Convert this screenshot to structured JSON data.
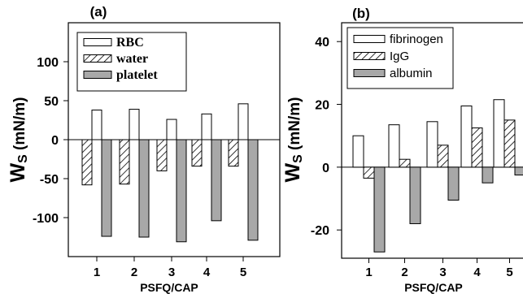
{
  "chart_data": [
    {
      "type": "bar",
      "panel_label": "(a)",
      "categories": [
        "1",
        "2",
        "3",
        "4",
        "5"
      ],
      "xlabel": "PSFQ/CAP",
      "ylabel_main": "W",
      "ylabel_sub": "S",
      "ylabel_unit": " (mN/m)",
      "ylim": [
        -150,
        150
      ],
      "yticks": [
        -100,
        -50,
        0,
        50,
        100
      ],
      "ytick_labels": [
        "-100",
        "-50",
        "0",
        "50",
        "100"
      ],
      "legend_position": "top-left",
      "series": [
        {
          "name": "water",
          "style": "hatch",
          "values": [
            -58,
            -57,
            -40,
            -34,
            -34
          ]
        },
        {
          "name": "RBC",
          "style": "white",
          "values": [
            38,
            39,
            26,
            33,
            46
          ]
        },
        {
          "name": "platelet",
          "style": "gray",
          "values": [
            -124,
            -125,
            -131,
            -104,
            -129
          ]
        }
      ]
    },
    {
      "type": "bar",
      "panel_label": "(b)",
      "categories": [
        "1",
        "2",
        "3",
        "4",
        "5"
      ],
      "xlabel": "PSFQ/CAP",
      "ylabel_main": "W",
      "ylabel_sub": "S",
      "ylabel_unit": " (mN/m)",
      "ylim": [
        -29,
        46
      ],
      "yticks": [
        -20,
        0,
        20,
        40
      ],
      "ytick_labels": [
        "-20",
        "0",
        "20",
        "40"
      ],
      "legend_position": "top-left",
      "series": [
        {
          "name": "fibrinogen",
          "style": "white",
          "values": [
            10,
            13.5,
            14.5,
            19.5,
            21.5
          ]
        },
        {
          "name": "IgG",
          "style": "hatch",
          "values": [
            -3.5,
            2.5,
            7,
            12.5,
            15
          ]
        },
        {
          "name": "albumin",
          "style": "gray",
          "values": [
            -27,
            -18,
            -10.5,
            -5,
            -2.5
          ]
        }
      ]
    }
  ],
  "colors": {
    "gray": "#a8a8a8",
    "white": "#ffffff",
    "stroke": "#000000"
  }
}
